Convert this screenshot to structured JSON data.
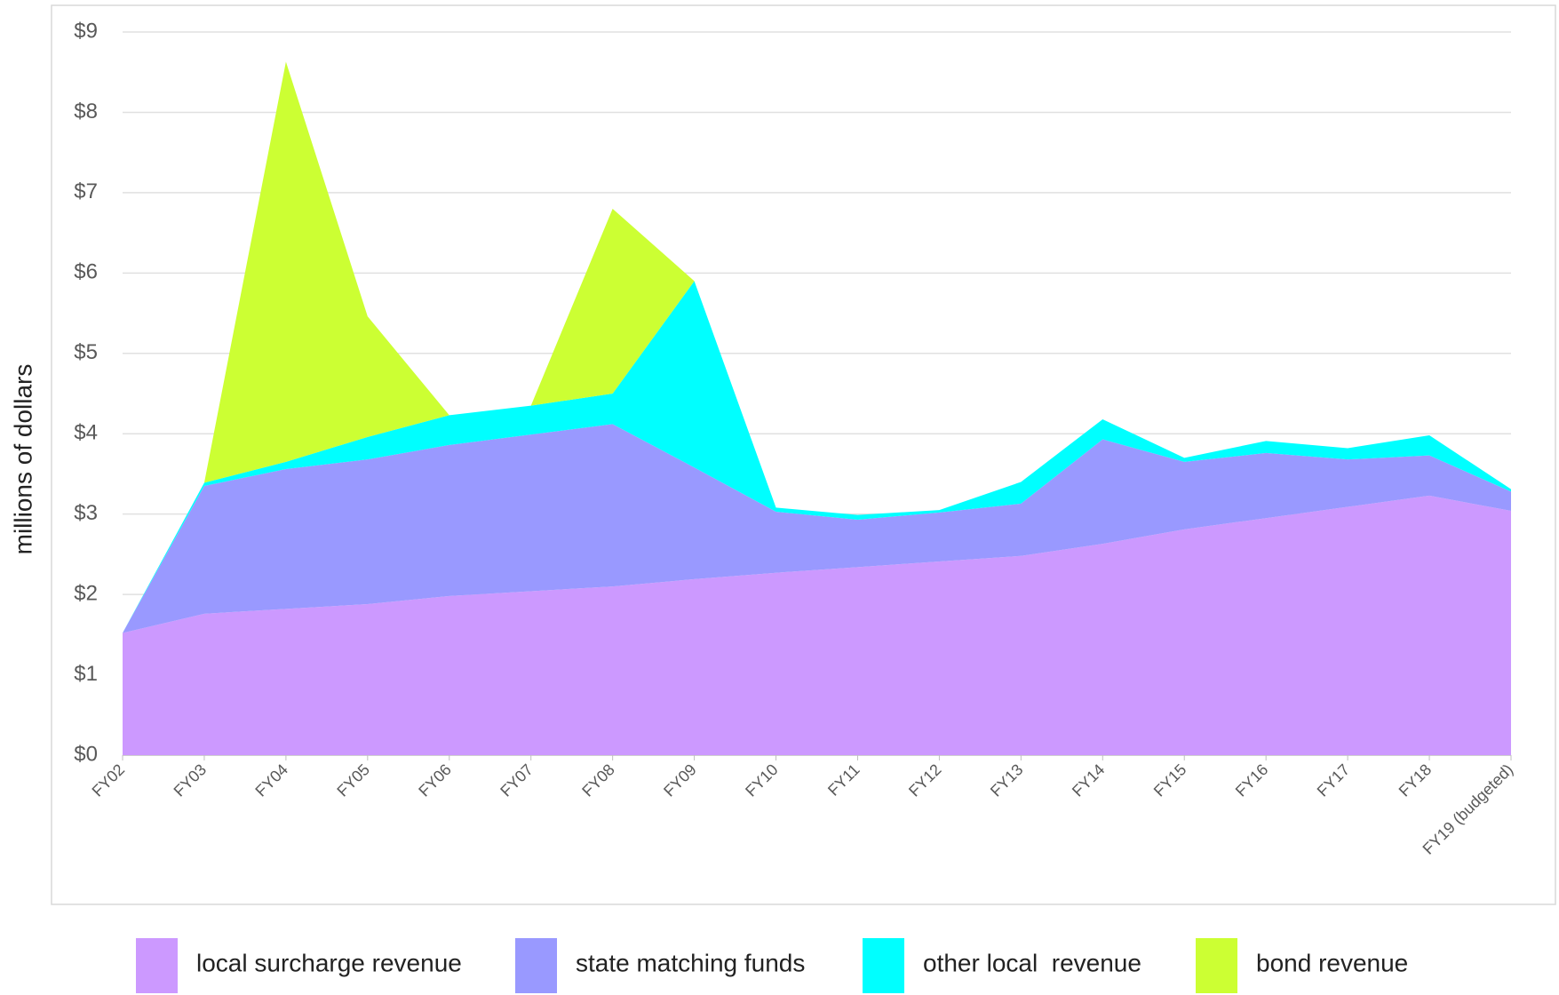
{
  "chart_data": {
    "type": "stacked_area",
    "y_label": "millions of dollars",
    "categories": [
      "FY02",
      "FY03",
      "FY04",
      "FY05",
      "FY06",
      "FY07",
      "FY08",
      "FY09",
      "FY10",
      "FY11",
      "FY12",
      "FY13",
      "FY14",
      "FY15",
      "FY16",
      "FY17",
      "FY18",
      "FY19 (budgeted)"
    ],
    "series": [
      {
        "name": "local surcharge revenue",
        "color": "#cc99ff",
        "values": [
          1.52,
          1.76,
          1.82,
          1.88,
          1.98,
          2.04,
          2.1,
          2.19,
          2.27,
          2.34,
          2.41,
          2.48,
          2.63,
          2.81,
          2.95,
          3.09,
          3.23,
          3.04
        ]
      },
      {
        "name": "state matching funds",
        "color": "#9999ff",
        "values": [
          0,
          1.59,
          1.74,
          1.8,
          1.88,
          1.95,
          2.02,
          1.39,
          0.76,
          0.59,
          0.61,
          0.65,
          1.3,
          0.84,
          0.81,
          0.59,
          0.5,
          0.24
        ]
      },
      {
        "name": "other local  revenue",
        "color": "#00ffff",
        "values": [
          0,
          0.04,
          0.09,
          0.28,
          0.37,
          0.36,
          0.38,
          2.32,
          0.05,
          0.06,
          0.03,
          0.27,
          0.25,
          0.05,
          0.15,
          0.14,
          0.25,
          0.03
        ]
      },
      {
        "name": "bond revenue",
        "color": "#ccff33",
        "values": [
          0,
          0,
          4.98,
          1.5,
          0,
          0,
          2.3,
          0,
          0,
          0,
          0,
          0,
          0,
          0,
          0,
          0,
          0,
          0
        ]
      }
    ],
    "ylim": [
      0,
      9
    ],
    "yticks": [
      {
        "value": 0,
        "label": "$0"
      },
      {
        "value": 1,
        "label": "$1"
      },
      {
        "value": 2,
        "label": "$2"
      },
      {
        "value": 3,
        "label": "$3"
      },
      {
        "value": 4,
        "label": "$4"
      },
      {
        "value": 5,
        "label": "$5"
      },
      {
        "value": 6,
        "label": "$6"
      },
      {
        "value": 7,
        "label": "$7"
      },
      {
        "value": 8,
        "label": "$8"
      },
      {
        "value": 9,
        "label": "$9"
      }
    ],
    "grid": true,
    "legend": "bottom"
  }
}
